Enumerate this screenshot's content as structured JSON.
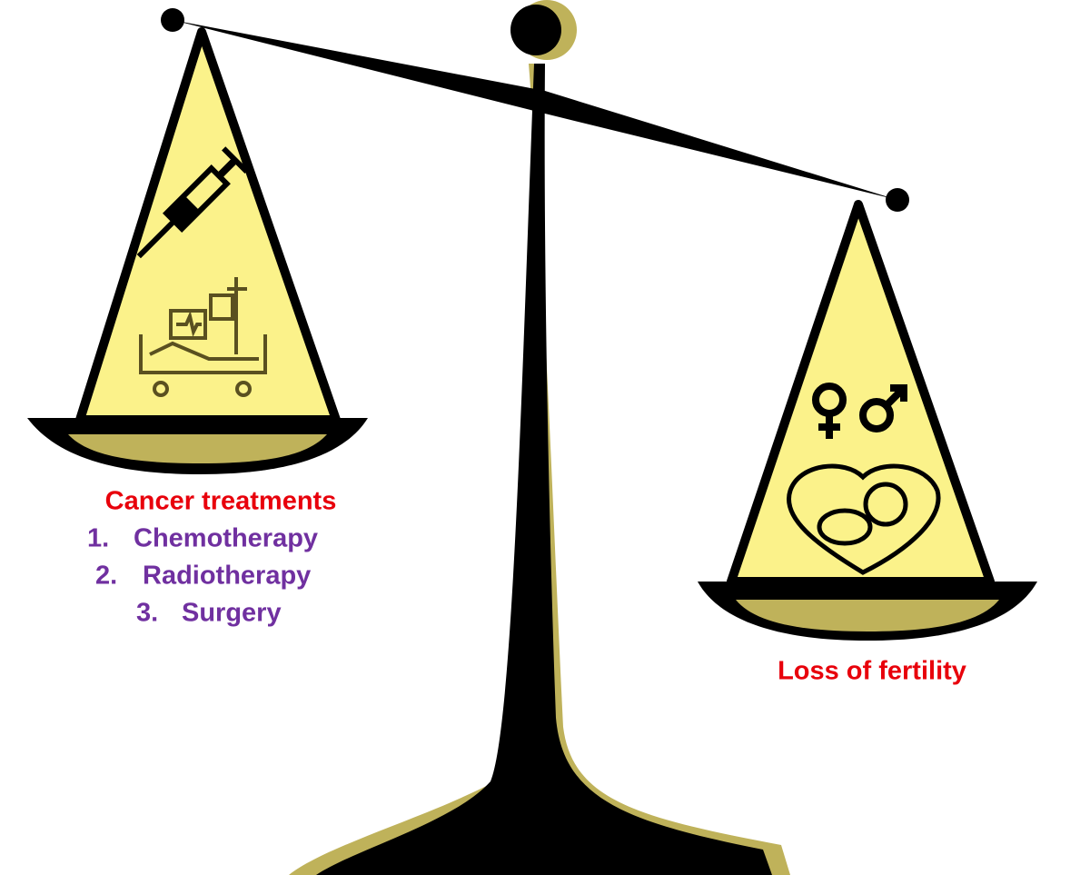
{
  "left_pan": {
    "title": "Cancer treatments",
    "items": [
      {
        "number": "1.",
        "text": "Chemotherapy"
      },
      {
        "number": "2.",
        "text": "Radiotherapy"
      },
      {
        "number": "3.",
        "text": "Surgery"
      }
    ]
  },
  "right_pan": {
    "title": "Loss of fertility"
  }
}
